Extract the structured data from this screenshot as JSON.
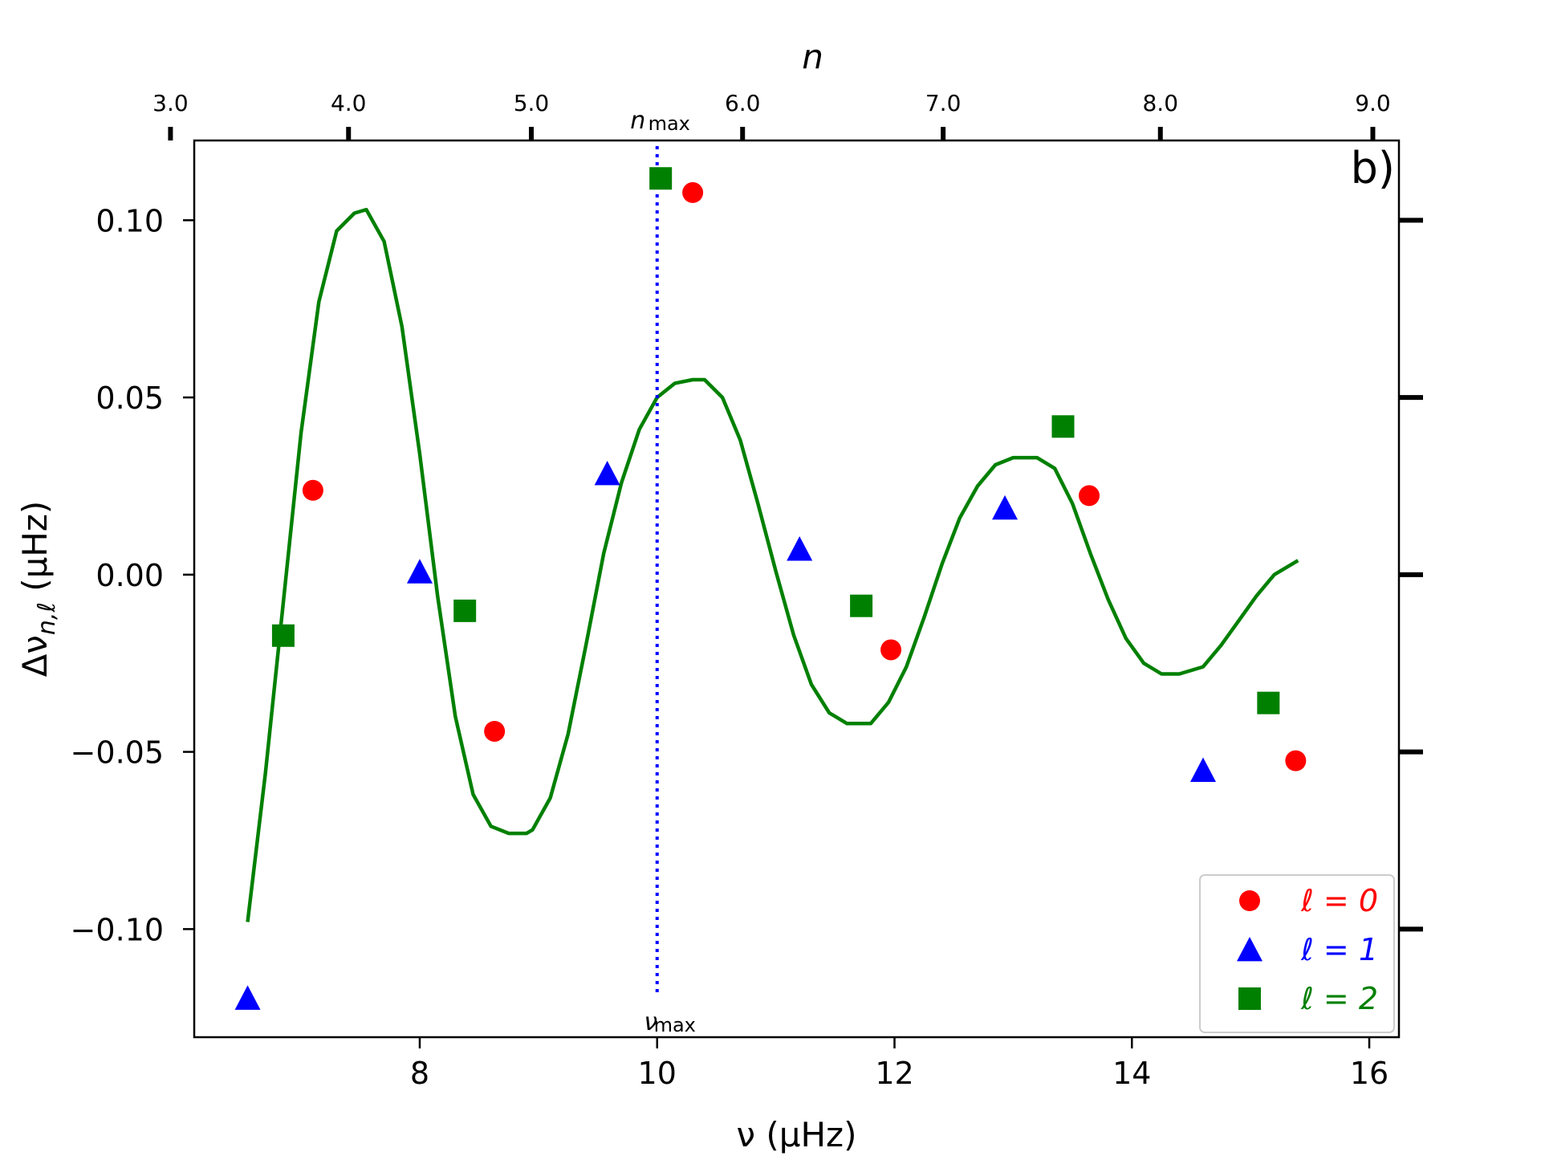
{
  "chart_data": {
    "type": "scatter",
    "panel_label": "b)",
    "xlabel": "ν (μHz)",
    "ylabel": "Δν_{n,ℓ} (μHz)",
    "top_xlabel": "n",
    "xlim": [
      6.1,
      16.25
    ],
    "ylim": [
      -0.1305,
      0.1225
    ],
    "x_ticks": [
      8,
      10,
      12,
      14,
      16
    ],
    "x_tick_labels": [
      "8",
      "10",
      "12",
      "14",
      "16"
    ],
    "y_ticks": [
      -0.1,
      -0.05,
      0.0,
      0.05,
      0.1
    ],
    "y_tick_labels": [
      "−0.10",
      "−0.05",
      "0.00",
      "0.05",
      "0.10"
    ],
    "top_ticks": {
      "values": [
        3.0,
        4.0,
        5.0,
        6.0,
        7.0,
        8.0,
        9.0
      ],
      "labels": [
        "3.0",
        "4.0",
        "5.0",
        "6.0",
        "7.0",
        "8.0",
        "9.0"
      ],
      "nu_positions": [
        5.9,
        7.4,
        8.94,
        10.72,
        12.41,
        14.24,
        16.03
      ]
    },
    "nu_max": {
      "x": 10.0,
      "label_bottom": "ν",
      "label_bottom_sub": "max",
      "label_top": "n",
      "label_top_sub": "max",
      "color": "#0000ff"
    },
    "series": [
      {
        "name": "ℓ = 0",
        "marker": "circle",
        "color": "#ff0000",
        "x": [
          7.1,
          8.63,
          10.3,
          11.97,
          13.64,
          15.38
        ],
        "y": [
          0.0238,
          -0.0442,
          0.1078,
          -0.0212,
          0.0223,
          -0.0525
        ]
      },
      {
        "name": "ℓ = 1",
        "marker": "triangle",
        "color": "#0000ff",
        "x": [
          6.55,
          8.0,
          9.58,
          11.2,
          12.93,
          14.6
        ],
        "y": [
          -0.1195,
          0.0008,
          0.0285,
          0.0072,
          0.0188,
          -0.0552
        ]
      },
      {
        "name": "ℓ = 2",
        "marker": "square",
        "color": "#008000",
        "x": [
          6.85,
          8.38,
          10.03,
          11.72,
          13.42,
          15.15
        ],
        "y": [
          -0.0172,
          -0.0102,
          0.1118,
          -0.0088,
          0.0418,
          -0.0362
        ]
      }
    ],
    "fit_curve": {
      "type": "line",
      "color": "#008000",
      "x": [
        6.55,
        6.7,
        6.85,
        7.0,
        7.15,
        7.3,
        7.45,
        7.55,
        7.7,
        7.85,
        8.0,
        8.15,
        8.3,
        8.45,
        8.6,
        8.75,
        8.9,
        8.95,
        9.1,
        9.25,
        9.4,
        9.55,
        9.7,
        9.85,
        10.0,
        10.15,
        10.3,
        10.4,
        10.55,
        10.7,
        10.85,
        11.0,
        11.15,
        11.3,
        11.45,
        11.6,
        11.8,
        11.95,
        12.1,
        12.25,
        12.4,
        12.55,
        12.7,
        12.85,
        13.0,
        13.2,
        13.35,
        13.5,
        13.65,
        13.8,
        13.95,
        14.1,
        14.25,
        14.4,
        14.6,
        14.75,
        14.9,
        15.05,
        15.2,
        15.4
      ],
      "y": [
        -0.098,
        -0.056,
        -0.008,
        0.04,
        0.077,
        0.097,
        0.102,
        0.103,
        0.094,
        0.07,
        0.034,
        -0.006,
        -0.04,
        -0.062,
        -0.071,
        -0.073,
        -0.073,
        -0.072,
        -0.063,
        -0.045,
        -0.02,
        0.006,
        0.026,
        0.041,
        0.05,
        0.054,
        0.055,
        0.055,
        0.05,
        0.038,
        0.02,
        0.001,
        -0.017,
        -0.031,
        -0.039,
        -0.042,
        -0.042,
        -0.036,
        -0.026,
        -0.012,
        0.003,
        0.016,
        0.025,
        0.031,
        0.033,
        0.033,
        0.03,
        0.02,
        0.006,
        -0.007,
        -0.018,
        -0.025,
        -0.028,
        -0.028,
        -0.026,
        -0.02,
        -0.013,
        -0.006,
        0.0,
        0.004
      ]
    },
    "legend": {
      "placement": "bottom-right"
    }
  }
}
